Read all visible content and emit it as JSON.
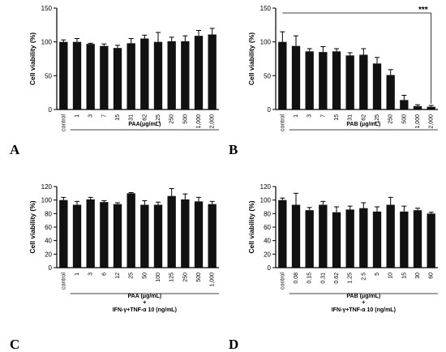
{
  "chart_data": [
    {
      "type": "bar",
      "panel_label": "A",
      "ylabel": "Cell viability (%)",
      "xlabel": "PAA(μg/mL)",
      "xlabel2": "",
      "ylim": [
        0,
        150
      ],
      "yticks": [
        0,
        50,
        100,
        150
      ],
      "categories": [
        "control",
        "1",
        "3",
        "7",
        "15",
        "31",
        "62",
        "125",
        "250",
        "500",
        "1,000",
        "2,000"
      ],
      "values": [
        100,
        100,
        97,
        94,
        91,
        98,
        105,
        100,
        101,
        101,
        109,
        111
      ],
      "errors": [
        3,
        5,
        1,
        3,
        4,
        7,
        5,
        14,
        6,
        8,
        8,
        9
      ],
      "significance": ""
    },
    {
      "type": "bar",
      "panel_label": "B",
      "ylabel": "Cell viability (%)",
      "xlabel": "PAB (μg/mL)",
      "xlabel2": "",
      "ylim": [
        0,
        150
      ],
      "yticks": [
        0,
        50,
        100,
        150
      ],
      "categories": [
        "control",
        "1",
        "3",
        "7",
        "15",
        "31",
        "62",
        "125",
        "250",
        "500",
        "1,000",
        "2,000"
      ],
      "values": [
        100,
        94,
        86,
        85,
        86,
        80,
        81,
        68,
        51,
        14,
        5,
        4
      ],
      "errors": [
        15,
        15,
        4,
        8,
        4,
        4,
        9,
        9,
        8,
        7,
        2,
        2
      ],
      "significance": "***"
    },
    {
      "type": "bar",
      "panel_label": "C",
      "ylabel": "Cell viability (%)",
      "xlabel": "PAA (μg/mL)",
      "xlabel2": "+",
      "xlabel3": "IFN-γ+TNF-α 10 (ng/mL)",
      "ylim": [
        0,
        120
      ],
      "yticks": [
        0,
        20,
        40,
        60,
        80,
        100,
        120
      ],
      "categories": [
        "control",
        "1",
        "3",
        "6",
        "12",
        "25",
        "50",
        "100",
        "125",
        "250",
        "500",
        "1,000"
      ],
      "values": [
        100,
        93,
        101,
        97,
        94,
        110,
        93,
        93,
        106,
        101,
        98,
        94
      ],
      "errors": [
        4,
        5,
        3,
        2,
        2,
        1,
        6,
        4,
        11,
        8,
        6,
        4
      ],
      "significance": ""
    },
    {
      "type": "bar",
      "panel_label": "D",
      "ylabel": "Cell viability (%)",
      "xlabel": "PAB (μg/mL)",
      "xlabel2": "+",
      "xlabel3": "IFN-γ+TNF-α 10 (ng/mL)",
      "ylim": [
        0,
        120
      ],
      "yticks": [
        0,
        20,
        40,
        60,
        80,
        100,
        120
      ],
      "categories": [
        "control",
        "0.08",
        "0.15",
        "0.31",
        "0.62",
        "1.25",
        "2.5",
        "5",
        "10",
        "15",
        "30",
        "60"
      ],
      "values": [
        100,
        93,
        85,
        93,
        82,
        86,
        88,
        83,
        93,
        83,
        85,
        80
      ],
      "errors": [
        3,
        17,
        4,
        5,
        8,
        5,
        8,
        7,
        11,
        8,
        3,
        2
      ],
      "significance": ""
    }
  ]
}
